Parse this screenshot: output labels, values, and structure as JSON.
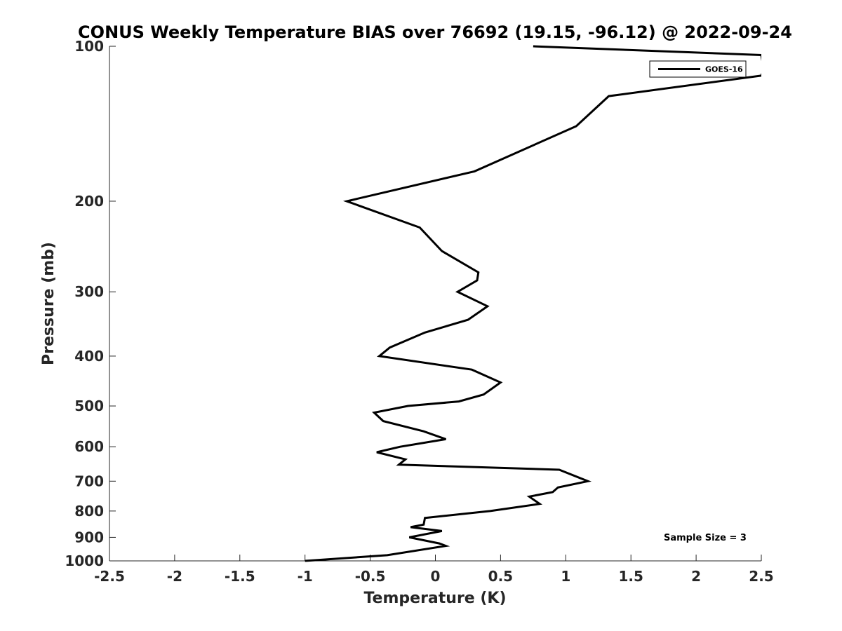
{
  "chart_data": {
    "type": "line",
    "title": "CONUS Weekly Temperature BIAS over 76692 (19.15, -96.12) @ 2022-09-24",
    "xlabel": "Temperature (K)",
    "ylabel": "Pressure (mb)",
    "xlim": [
      -2.5,
      2.5
    ],
    "ylim": [
      100,
      1000
    ],
    "yscale": "log",
    "y_reversed": true,
    "grid": false,
    "legend_position": "top-right",
    "x_ticks": [
      -2.5,
      -2,
      -1.5,
      -1,
      -0.5,
      0,
      0.5,
      1,
      1.5,
      2,
      2.5
    ],
    "x_tick_labels": [
      "-2.5",
      "-2",
      "-1.5",
      "-1",
      "-0.5",
      "0",
      "0.5",
      "1",
      "1.5",
      "2",
      "2.5"
    ],
    "y_ticks": [
      100,
      200,
      300,
      400,
      500,
      600,
      700,
      800,
      900,
      1000
    ],
    "y_tick_labels": [
      "100",
      "200",
      "300",
      "400",
      "500",
      "600",
      "700",
      "800",
      "900",
      "1000"
    ],
    "annotation": "Sample Size = 3",
    "series": [
      {
        "name": "GOES-16",
        "color": "#000000",
        "points": [
          {
            "t": 0.75,
            "p": 100
          },
          {
            "t": 2.5,
            "p": 104
          },
          {
            "t": 2.52,
            "p": 111
          },
          {
            "t": 2.5,
            "p": 114
          },
          {
            "t": 1.33,
            "p": 125
          },
          {
            "t": 1.08,
            "p": 143
          },
          {
            "t": 0.3,
            "p": 175
          },
          {
            "t": -0.68,
            "p": 200
          },
          {
            "t": -0.12,
            "p": 225
          },
          {
            "t": 0.05,
            "p": 250
          },
          {
            "t": 0.33,
            "p": 275
          },
          {
            "t": 0.32,
            "p": 285
          },
          {
            "t": 0.17,
            "p": 300
          },
          {
            "t": 0.4,
            "p": 320
          },
          {
            "t": 0.25,
            "p": 340
          },
          {
            "t": -0.08,
            "p": 360
          },
          {
            "t": -0.35,
            "p": 385
          },
          {
            "t": -0.43,
            "p": 400
          },
          {
            "t": 0.28,
            "p": 425
          },
          {
            "t": 0.5,
            "p": 450
          },
          {
            "t": 0.37,
            "p": 475
          },
          {
            "t": 0.18,
            "p": 490
          },
          {
            "t": -0.21,
            "p": 500
          },
          {
            "t": -0.47,
            "p": 515
          },
          {
            "t": -0.4,
            "p": 535
          },
          {
            "t": -0.09,
            "p": 560
          },
          {
            "t": 0.08,
            "p": 580
          },
          {
            "t": -0.27,
            "p": 600
          },
          {
            "t": -0.45,
            "p": 615
          },
          {
            "t": -0.23,
            "p": 635
          },
          {
            "t": -0.28,
            "p": 650
          },
          {
            "t": 0.95,
            "p": 665
          },
          {
            "t": 1.17,
            "p": 700
          },
          {
            "t": 0.94,
            "p": 720
          },
          {
            "t": 0.9,
            "p": 735
          },
          {
            "t": 0.72,
            "p": 750
          },
          {
            "t": 0.8,
            "p": 775
          },
          {
            "t": 0.42,
            "p": 800
          },
          {
            "t": -0.08,
            "p": 825
          },
          {
            "t": -0.09,
            "p": 850
          },
          {
            "t": -0.19,
            "p": 860
          },
          {
            "t": 0.05,
            "p": 875
          },
          {
            "t": -0.2,
            "p": 900
          },
          {
            "t": 0.03,
            "p": 925
          },
          {
            "t": 0.08,
            "p": 935
          },
          {
            "t": -0.37,
            "p": 975
          },
          {
            "t": -1.0,
            "p": 1000
          }
        ]
      }
    ]
  }
}
